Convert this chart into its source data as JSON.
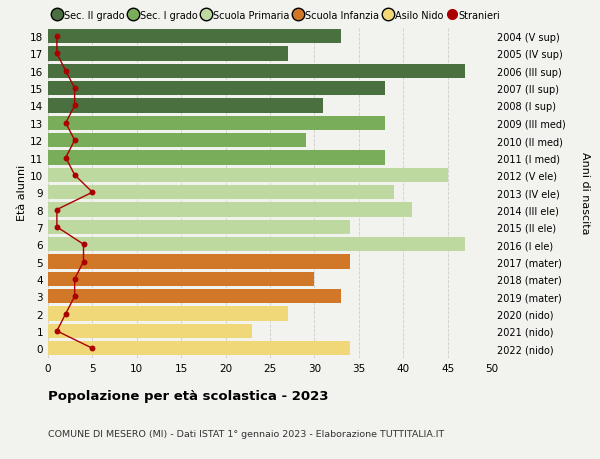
{
  "ages": [
    18,
    17,
    16,
    15,
    14,
    13,
    12,
    11,
    10,
    9,
    8,
    7,
    6,
    5,
    4,
    3,
    2,
    1,
    0
  ],
  "right_labels": [
    "2004 (V sup)",
    "2005 (IV sup)",
    "2006 (III sup)",
    "2007 (II sup)",
    "2008 (I sup)",
    "2009 (III med)",
    "2010 (II med)",
    "2011 (I med)",
    "2012 (V ele)",
    "2013 (IV ele)",
    "2014 (III ele)",
    "2015 (II ele)",
    "2016 (I ele)",
    "2017 (mater)",
    "2018 (mater)",
    "2019 (mater)",
    "2020 (nido)",
    "2021 (nido)",
    "2022 (nido)"
  ],
  "bar_values": [
    33,
    27,
    47,
    38,
    31,
    38,
    29,
    38,
    45,
    39,
    41,
    34,
    47,
    34,
    30,
    33,
    27,
    23,
    34
  ],
  "bar_colors": [
    "#4a7040",
    "#4a7040",
    "#4a7040",
    "#4a7040",
    "#4a7040",
    "#7aad5a",
    "#7aad5a",
    "#7aad5a",
    "#bdd9a0",
    "#bdd9a0",
    "#bdd9a0",
    "#bdd9a0",
    "#bdd9a0",
    "#d07828",
    "#d07828",
    "#d07828",
    "#f0d878",
    "#f0d878",
    "#f0d878"
  ],
  "stranieri_values": [
    1,
    1,
    2,
    3,
    3,
    2,
    3,
    2,
    3,
    5,
    1,
    1,
    4,
    4,
    3,
    3,
    2,
    1,
    5
  ],
  "stranieri_color": "#aa0000",
  "ylabel_left": "Età alunni",
  "ylabel_right": "Anni di nascita",
  "xlim": [
    0,
    50
  ],
  "xticks": [
    0,
    5,
    10,
    15,
    20,
    25,
    30,
    35,
    40,
    45,
    50
  ],
  "title": "Popolazione per età scolastica - 2023",
  "subtitle": "COMUNE DI MESERO (MI) - Dati ISTAT 1° gennaio 2023 - Elaborazione TUTTITALIA.IT",
  "legend_labels": [
    "Sec. II grado",
    "Sec. I grado",
    "Scuola Primaria",
    "Scuola Infanzia",
    "Asilo Nido",
    "Stranieri"
  ],
  "legend_colors": [
    "#4a7040",
    "#7aad5a",
    "#bdd9a0",
    "#d07828",
    "#f0d878",
    "#aa0000"
  ],
  "bg_color": "#f2f2ee",
  "grid_color": "#cccccc"
}
